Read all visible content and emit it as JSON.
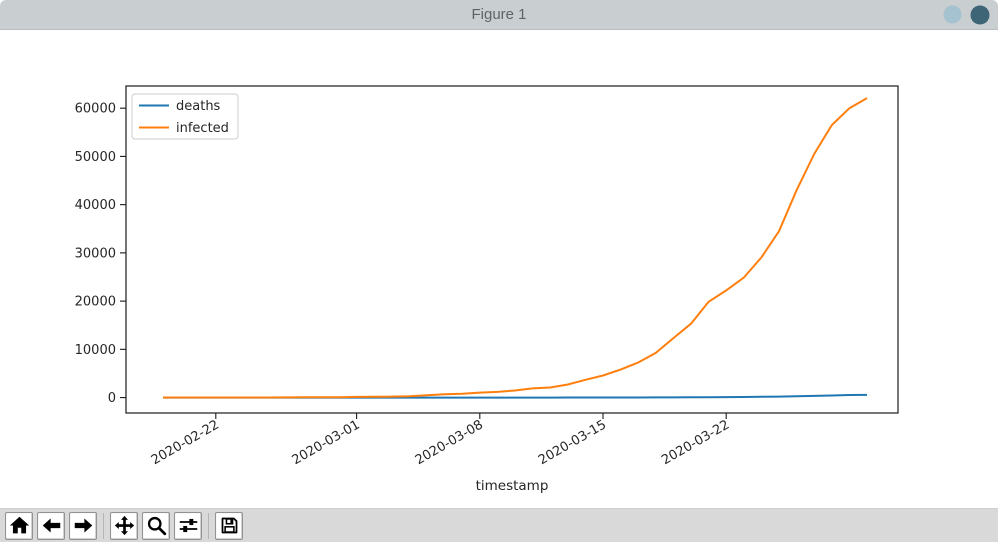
{
  "window": {
    "title": "Figure 1",
    "titlebar_color": "#c9ced1",
    "title_color": "#5d6467",
    "controls": [
      {
        "name": "window-control-light",
        "color": "#a4c2cf"
      },
      {
        "name": "window-control-dark",
        "color": "#3e6575"
      }
    ]
  },
  "toolbar": {
    "background": "#d9d9d9",
    "buttons": [
      {
        "name": "home",
        "icon": "home-icon"
      },
      {
        "name": "back",
        "icon": "arrow-left-icon"
      },
      {
        "name": "forward",
        "icon": "arrow-right-icon"
      },
      {
        "name": "pan",
        "icon": "move-icon"
      },
      {
        "name": "zoom",
        "icon": "magnifier-icon"
      },
      {
        "name": "configure-subplots",
        "icon": "sliders-icon"
      },
      {
        "name": "save",
        "icon": "floppy-icon"
      }
    ]
  },
  "chart_data": {
    "type": "line",
    "title": "",
    "xlabel": "timestamp",
    "ylabel": "",
    "grid": false,
    "legend_position": "upper left",
    "axis_color": "#1a1a1a",
    "tick_label_color": "#262626",
    "ylim": [
      -3200,
      64600
    ],
    "yticks": [
      0,
      10000,
      20000,
      30000,
      40000,
      50000,
      60000
    ],
    "xticks": [
      "2020-02-22",
      "2020-03-01",
      "2020-03-08",
      "2020-03-15",
      "2020-03-22"
    ],
    "x": [
      "2020-02-19",
      "2020-02-20",
      "2020-02-21",
      "2020-02-22",
      "2020-02-23",
      "2020-02-24",
      "2020-02-25",
      "2020-02-26",
      "2020-02-27",
      "2020-02-28",
      "2020-02-29",
      "2020-03-01",
      "2020-03-02",
      "2020-03-03",
      "2020-03-04",
      "2020-03-05",
      "2020-03-06",
      "2020-03-07",
      "2020-03-08",
      "2020-03-09",
      "2020-03-10",
      "2020-03-11",
      "2020-03-12",
      "2020-03-13",
      "2020-03-14",
      "2020-03-15",
      "2020-03-16",
      "2020-03-17",
      "2020-03-18",
      "2020-03-19",
      "2020-03-20",
      "2020-03-21",
      "2020-03-22",
      "2020-03-23",
      "2020-03-24",
      "2020-03-25",
      "2020-03-26",
      "2020-03-27",
      "2020-03-28",
      "2020-03-29",
      "2020-03-30"
    ],
    "series": [
      {
        "name": "deaths",
        "color": "#1f77b4",
        "values": [
          0,
          0,
          0,
          0,
          0,
          0,
          0,
          0,
          0,
          0,
          0,
          0,
          0,
          0,
          0,
          0,
          0,
          0,
          0,
          2,
          2,
          3,
          3,
          7,
          9,
          11,
          17,
          24,
          28,
          44,
          67,
          84,
          94,
          123,
          157,
          206,
          267,
          342,
          433,
          533,
          560
        ]
      },
      {
        "name": "infected",
        "color": "#ff7f0e",
        "values": [
          16,
          16,
          16,
          16,
          16,
          16,
          17,
          27,
          46,
          48,
          79,
          130,
          159,
          196,
          262,
          482,
          670,
          799,
          1040,
          1176,
          1457,
          1908,
          2078,
          2718,
          3675,
          4585,
          5795,
          7272,
          9257,
          12327,
          15320,
          19848,
          22213,
          24873,
          29056,
          34500,
          43000,
          50500,
          56500,
          60000,
          62095
        ]
      }
    ]
  }
}
